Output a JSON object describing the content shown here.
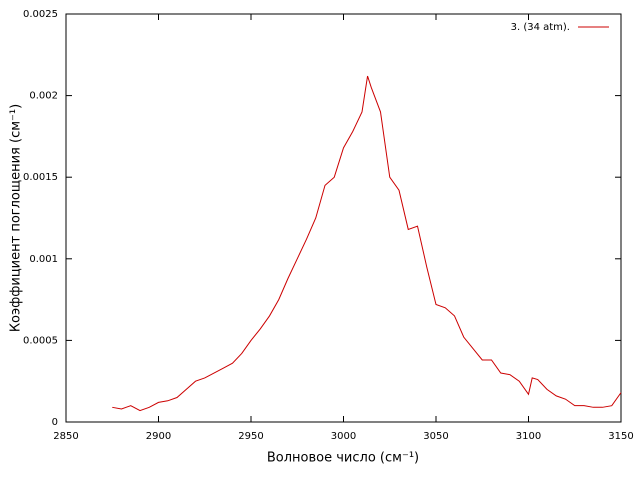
{
  "chart_data": {
    "type": "line",
    "xlabel": "Волновое число (см⁻¹)",
    "ylabel": "Коэффициент поглощения (см⁻¹)",
    "xlim": [
      2850,
      3150
    ],
    "xticks": [
      2850,
      2900,
      2950,
      3000,
      3050,
      3100,
      3150
    ],
    "ylim": [
      0,
      0.0025
    ],
    "yticks": [
      0,
      0.0005,
      0.001,
      0.0015,
      0.002,
      0.0025
    ],
    "legend": "top-right",
    "series": [
      {
        "name": "3. (34 atm).",
        "color": "#cc0000",
        "x": [
          2875,
          2880,
          2885,
          2890,
          2895,
          2900,
          2905,
          2910,
          2915,
          2920,
          2925,
          2930,
          2935,
          2940,
          2945,
          2950,
          2955,
          2960,
          2965,
          2970,
          2975,
          2980,
          2985,
          2990,
          2995,
          3000,
          3005,
          3010,
          3013,
          3015,
          3020,
          3025,
          3030,
          3035,
          3040,
          3045,
          3050,
          3055,
          3060,
          3065,
          3070,
          3075,
          3080,
          3085,
          3090,
          3095,
          3100,
          3102,
          3105,
          3110,
          3115,
          3120,
          3125,
          3130,
          3135,
          3140,
          3145,
          3150
        ],
        "values": [
          9e-05,
          8e-05,
          0.0001,
          7e-05,
          9e-05,
          0.00012,
          0.00013,
          0.00015,
          0.0002,
          0.00025,
          0.00027,
          0.0003,
          0.00033,
          0.00036,
          0.00042,
          0.0005,
          0.00057,
          0.00065,
          0.00075,
          0.00088,
          0.001,
          0.00112,
          0.00125,
          0.00145,
          0.0015,
          0.00168,
          0.00178,
          0.0019,
          0.00212,
          0.00205,
          0.0019,
          0.0015,
          0.00142,
          0.00118,
          0.0012,
          0.00095,
          0.00072,
          0.0007,
          0.00065,
          0.00052,
          0.00045,
          0.00038,
          0.00038,
          0.0003,
          0.00029,
          0.00025,
          0.00017,
          0.00027,
          0.00026,
          0.0002,
          0.00016,
          0.00014,
          0.0001,
          0.0001,
          9e-05,
          9e-05,
          0.0001,
          0.00018
        ]
      }
    ]
  }
}
